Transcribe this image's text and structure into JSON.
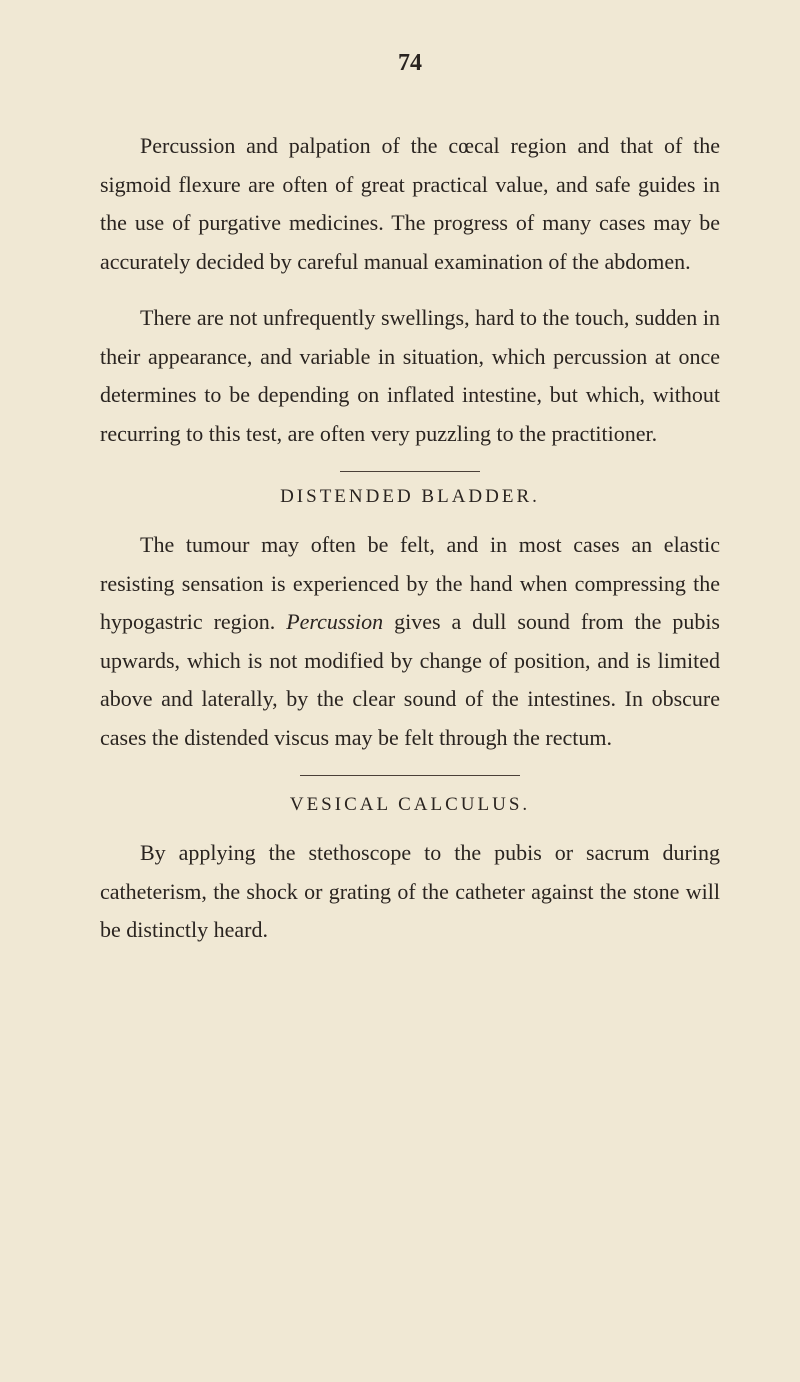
{
  "page_number": "74",
  "paragraphs": {
    "p1": "Percussion and palpation of the cœcal region and that of the sigmoid flexure are often of great practical value, and safe guides in the use of purgative medicines. The progress of many cases may be accurately decided by careful manual examination of the abdomen.",
    "p2": "There are not unfrequently swellings, hard to the touch, sudden in their appearance, and variable in situation, which percussion at once determines to be depending on inflated intestine, but which, without recurring to this test, are often very puzzling to the practitioner.",
    "heading1": "DISTENDED BLADDER.",
    "p3_part1": "The tumour may often be felt, and in most cases an elastic resisting sensation is experienced by the hand when compressing the hypogastric region. ",
    "p3_italic": "Percussion",
    "p3_part2": " gives a dull sound from the pubis upwards, which is not modified by change of position, and is limited above and laterally, by the clear sound of the intestines. In obscure cases the distended viscus may be felt through the rectum.",
    "heading2": "VESICAL CALCULUS.",
    "p4": "By applying the stethoscope to the pubis or sacrum during catheterism, the shock or grating of the catheter against the stone will be distinctly heard."
  },
  "styling": {
    "background_color": "#f0e8d4",
    "text_color": "#2a2420",
    "body_fontsize": 22,
    "heading_fontsize": 19,
    "pagenum_fontsize": 24,
    "line_height": 1.75,
    "divider_color": "#4a4038"
  }
}
